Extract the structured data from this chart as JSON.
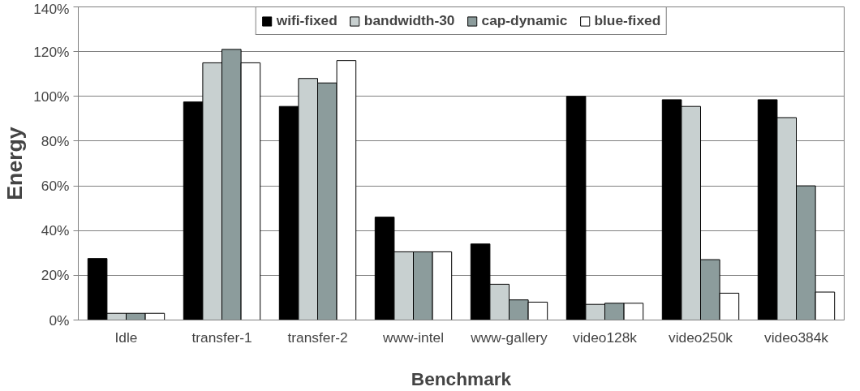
{
  "chart_data": {
    "type": "bar",
    "xlabel": "Benchmark",
    "ylabel": "Energy",
    "categories": [
      "Idle",
      "transfer-1",
      "transfer-2",
      "www-intel",
      "www-gallery",
      "video128k",
      "video250k",
      "video384k"
    ],
    "series": [
      {
        "name": "wifi-fixed",
        "color": "#000000",
        "values": [
          27.5,
          97.5,
          95.5,
          46,
          34,
          100,
          98.5,
          98.5
        ]
      },
      {
        "name": "bandwidth-30",
        "color": "#c8d0d0",
        "values": [
          3,
          115,
          108,
          30.5,
          16,
          7,
          95.5,
          90.5
        ]
      },
      {
        "name": "cap-dynamic",
        "color": "#8c9c9c",
        "values": [
          3,
          121,
          106,
          30.5,
          9,
          7.5,
          27,
          60
        ]
      },
      {
        "name": "blue-fixed",
        "color": "#ffffff",
        "values": [
          3,
          115,
          116,
          30.5,
          8,
          7.5,
          12,
          12.5
        ]
      }
    ],
    "ylim": [
      0,
      140
    ],
    "yticks": [
      {
        "value": 0,
        "label": "0%"
      },
      {
        "value": 20,
        "label": "20%"
      },
      {
        "value": 40,
        "label": "40%"
      },
      {
        "value": 60,
        "label": "60%"
      },
      {
        "value": 80,
        "label": "80%"
      },
      {
        "value": 100,
        "label": "100%"
      },
      {
        "value": 120,
        "label": "120%"
      },
      {
        "value": 140,
        "label": "140%"
      }
    ],
    "grid": "y",
    "legend": "top"
  }
}
